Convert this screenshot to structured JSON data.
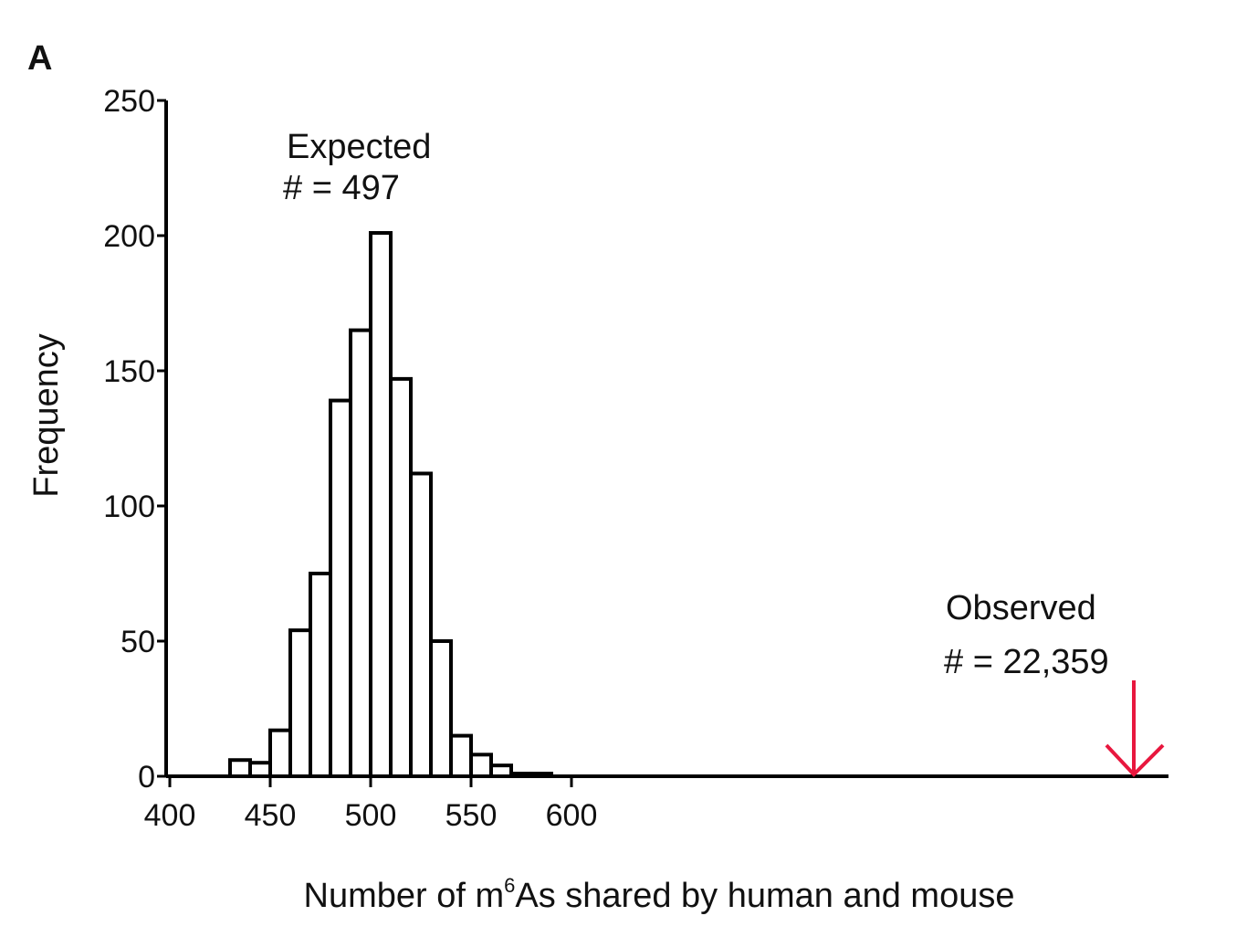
{
  "panel_label": "A",
  "colors": {
    "bar_fill": "#ffffff",
    "bar_stroke": "#000000",
    "observed_arrow": "#e8173e"
  },
  "chart_data": {
    "type": "bar",
    "title": "",
    "xlabel": "Number of m6As shared by human and mouse",
    "xlabel_parts": {
      "before": "Number of m",
      "sup": "6",
      "after": "As shared by human and mouse"
    },
    "ylabel": "Frequency",
    "xlim": [
      400,
      600
    ],
    "ylim": [
      0,
      250
    ],
    "x_ticks": [
      400,
      450,
      500,
      550,
      600
    ],
    "y_ticks": [
      0,
      50,
      100,
      150,
      200,
      250
    ],
    "bin_width": 10,
    "bins": [
      {
        "x": 430,
        "value": 6
      },
      {
        "x": 440,
        "value": 5
      },
      {
        "x": 450,
        "value": 17
      },
      {
        "x": 460,
        "value": 54
      },
      {
        "x": 470,
        "value": 75
      },
      {
        "x": 480,
        "value": 139
      },
      {
        "x": 490,
        "value": 165
      },
      {
        "x": 500,
        "value": 201
      },
      {
        "x": 510,
        "value": 147
      },
      {
        "x": 520,
        "value": 112
      },
      {
        "x": 530,
        "value": 50
      },
      {
        "x": 540,
        "value": 15
      },
      {
        "x": 550,
        "value": 8
      },
      {
        "x": 560,
        "value": 4
      },
      {
        "x": 570,
        "value": 1
      },
      {
        "x": 580,
        "value": 1
      }
    ],
    "annotations": {
      "expected": {
        "line1": "Expected",
        "line2": "# = 497",
        "value": 497
      },
      "observed": {
        "line1": "Observed",
        "line2": "# = 22,359",
        "value": 22359
      }
    },
    "grid": false,
    "legend": "none"
  }
}
